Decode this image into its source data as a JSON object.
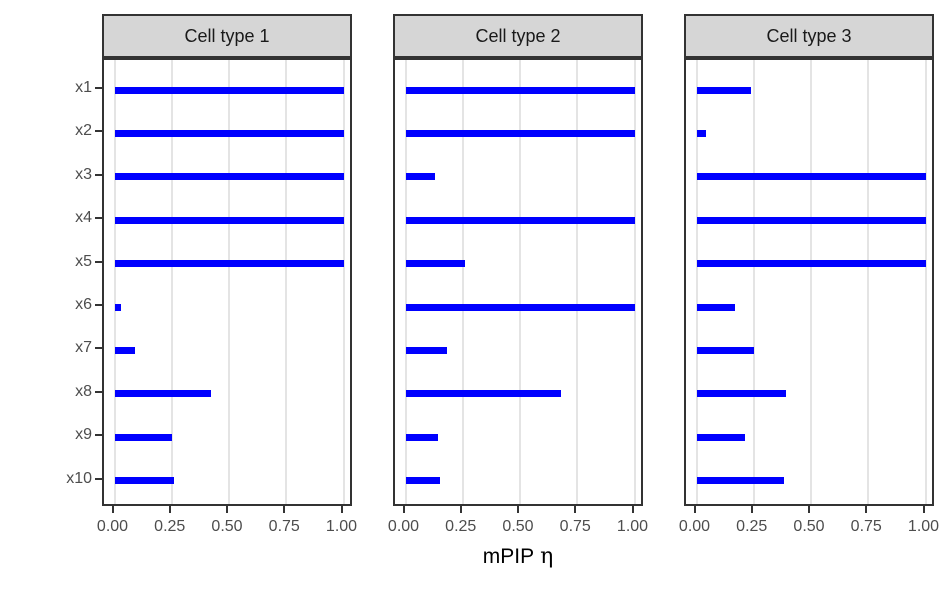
{
  "chart_data": {
    "type": "bar",
    "orientation": "horizontal",
    "title": "",
    "xlabel": "mPIP η",
    "xlabel_text": "mPIP",
    "xlabel_symbol": "η",
    "ylabel": "",
    "xlim": [
      0,
      1
    ],
    "x_tick_labels": [
      "0.00",
      "0.25",
      "0.50",
      "0.75",
      "1.00"
    ],
    "x_tick_values": [
      0,
      0.25,
      0.5,
      0.75,
      1.0
    ],
    "categories": [
      "x1",
      "x2",
      "x3",
      "x4",
      "x5",
      "x6",
      "x7",
      "x8",
      "x9",
      "x10"
    ],
    "facets": [
      {
        "label": "Cell type 1",
        "values": [
          1.0,
          1.0,
          1.0,
          1.0,
          1.0,
          0.03,
          0.09,
          0.42,
          0.25,
          0.26
        ]
      },
      {
        "label": "Cell type 2",
        "values": [
          1.0,
          1.0,
          0.13,
          1.0,
          0.26,
          1.0,
          0.18,
          0.68,
          0.14,
          0.15
        ]
      },
      {
        "label": "Cell type 3",
        "values": [
          0.24,
          0.04,
          1.0,
          1.0,
          1.0,
          0.17,
          0.25,
          0.39,
          0.21,
          0.38
        ]
      }
    ],
    "grid": "vertical-major-only",
    "legend": "none",
    "colors": {
      "bar": "#0000ff",
      "gridline": "#e4e4e4",
      "panel_border": "#333333",
      "strip_fill": "#d6d6d6",
      "axis_text": "#4d4d4d",
      "tick": "#333333",
      "axis_title": "#000000",
      "background": "#ffffff"
    }
  }
}
